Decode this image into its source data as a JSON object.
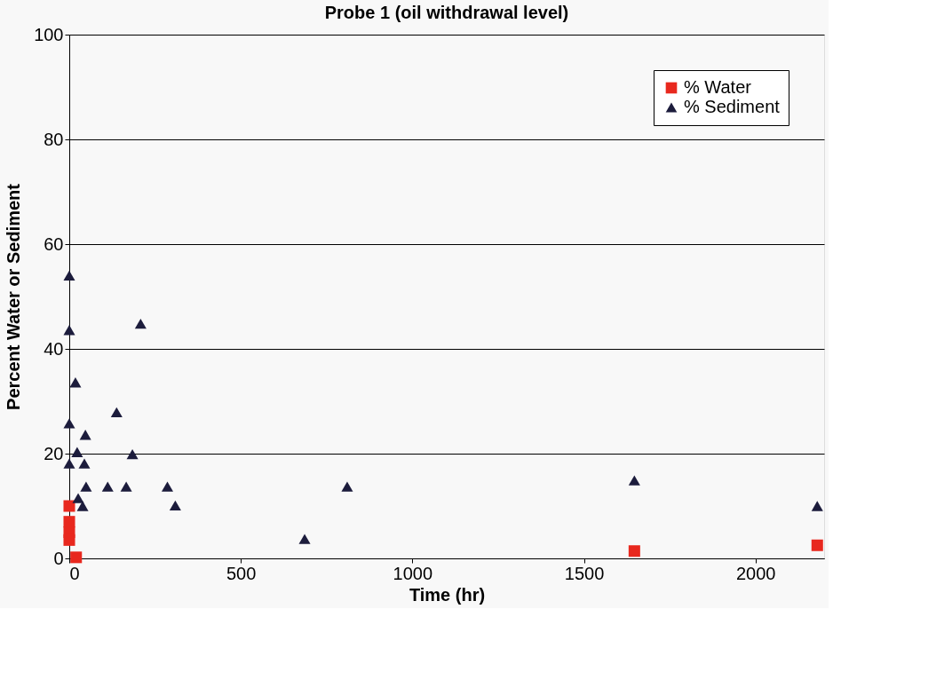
{
  "chart_data": {
    "type": "scatter",
    "title": "Probe 1 (oil withdrawal level)",
    "xlabel": "Time (hr)",
    "ylabel": "Percent Water or Sediment",
    "xlim": [
      0,
      2200
    ],
    "xticks": [
      0,
      500,
      1000,
      1500,
      2000
    ],
    "ylim": [
      0,
      100
    ],
    "yticks": [
      0,
      20,
      40,
      60,
      80,
      100
    ],
    "grid": "y",
    "legend": "top right",
    "series": [
      {
        "name": "% Water",
        "color": "#e8281e",
        "marker": "square",
        "x": [
          0,
          0,
          0,
          0,
          10,
          20,
          1647,
          2180
        ],
        "values": [
          10,
          7,
          5,
          3.5,
          null,
          0.2,
          1.4,
          2.5
        ]
      },
      {
        "name": "% Sediment",
        "color": "#1c1c3c",
        "marker": "triangle",
        "x": [
          0,
          0,
          18,
          0,
          47,
          23,
          0,
          44,
          49,
          26,
          39,
          138,
          208,
          184,
          112,
          166,
          286,
          309,
          686,
          810,
          1647,
          2180
        ],
        "values": [
          54,
          43.6,
          33.6,
          25.8,
          23.6,
          20.3,
          18.1,
          18.1,
          13.7,
          11.5,
          10,
          27.9,
          44.8,
          19.9,
          13.7,
          13.7,
          13.7,
          10.1,
          3.7,
          13.7,
          14.9,
          10
        ]
      }
    ]
  }
}
